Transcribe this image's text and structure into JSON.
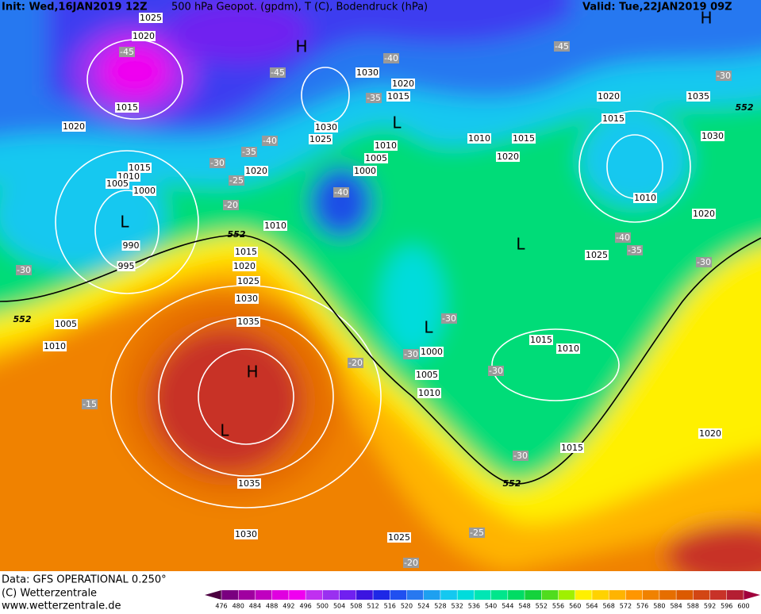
{
  "header": {
    "init": "Init: Wed,16JAN2019 12Z",
    "title": "500 hPa Geopot. (gpdm), T (C), Bodendruck (hPa)",
    "valid": "Valid: Tue,22JAN2019 09Z"
  },
  "map": {
    "isobar_labels": [
      1025,
      1020,
      1015,
      1020,
      1030,
      1020,
      1015,
      1030,
      1025,
      1010,
      1005,
      1000,
      1020,
      1015,
      1010,
      1005,
      1000,
      1010,
      990,
      995,
      1015,
      1020,
      1025,
      1030,
      1035,
      1005,
      1010,
      1000,
      1005,
      1010,
      1035,
      1030,
      1025,
      1020,
      1015,
      1010,
      1015,
      1020,
      1035,
      1030,
      1010,
      1020,
      1025,
      1015,
      1010,
      1015,
      1020
    ],
    "temperature_labels": [
      -45,
      -45,
      -40,
      -35,
      -45,
      -30,
      -40,
      -35,
      -30,
      -25,
      -20,
      -40,
      -30,
      -40,
      -35,
      -30,
      -30,
      -30,
      -20,
      -30,
      -15,
      -30,
      -25,
      -20
    ],
    "pressure_centers": [
      "H",
      "H",
      "H",
      "L",
      "L",
      "L",
      "L",
      "L"
    ],
    "geopotential_labels": [
      552,
      552,
      552,
      552
    ]
  },
  "footer": {
    "data": "Data: GFS OPERATIONAL 0.250°",
    "copyright": "(C) Wetterzentrale",
    "url": "www.wetterzentrale.de"
  },
  "legend": {
    "ticks": [
      476,
      480,
      484,
      488,
      492,
      496,
      500,
      504,
      508,
      512,
      516,
      520,
      524,
      528,
      532,
      536,
      540,
      544,
      548,
      552,
      556,
      560,
      564,
      568,
      572,
      576,
      580,
      584,
      588,
      592,
      596,
      600
    ],
    "colors": [
      "#4b0040",
      "#7a0080",
      "#a000a0",
      "#c000c0",
      "#e000e0",
      "#f000f0",
      "#c030f0",
      "#9a30f0",
      "#7020f0",
      "#3c14e0",
      "#1e28e6",
      "#2050f0",
      "#2878f0",
      "#1ea0f0",
      "#14c8f0",
      "#00dcdc",
      "#00e6b4",
      "#00e68c",
      "#00dc64",
      "#14d23c",
      "#50dc1e",
      "#a0f000",
      "#fff000",
      "#ffd200",
      "#ffb400",
      "#ff9600",
      "#f08200",
      "#e66e00",
      "#dc5a00",
      "#d24614",
      "#c83228",
      "#b41e32",
      "#a0003c"
    ]
  }
}
